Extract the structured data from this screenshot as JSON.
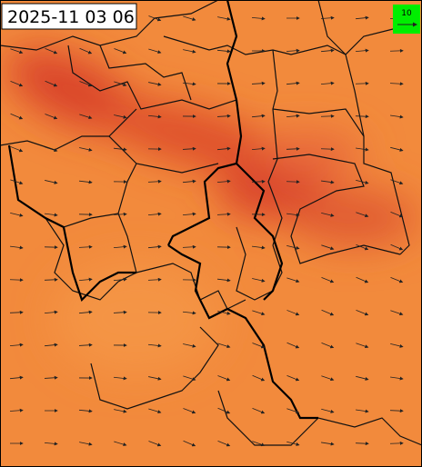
{
  "header": {
    "timestamp": "2025-11 03 06"
  },
  "legend": {
    "scale_label": "10"
  }
}
